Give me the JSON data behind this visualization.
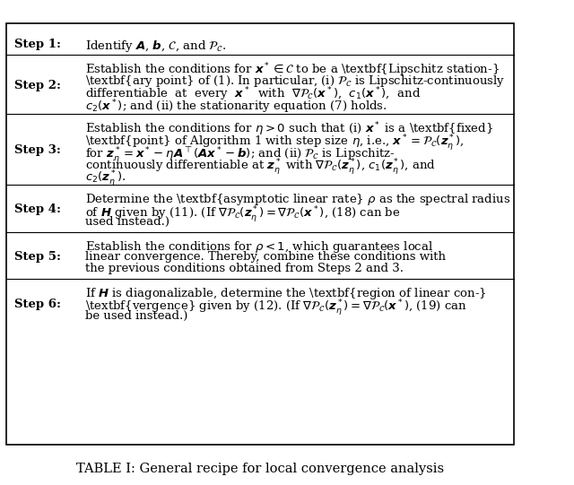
{
  "title": "TABLE I: General recipe for local convergence analysis",
  "background_color": "#ffffff",
  "border_color": "#000000",
  "text_color": "#000000",
  "steps": [
    {
      "label": "Step 1:",
      "content_lines": [
        "Identify $\\boldsymbol{A}$, $\\boldsymbol{b}$, $\\mathcal{C}$, and $\\mathcal{P}_{\\mathcal{C}}$."
      ]
    },
    {
      "label": "Step 2:",
      "content_lines": [
        "Establish the conditions for $\\boldsymbol{x}^* \\in \\mathcal{C}$ to be a \\textbf{Lipschitz station-}",
        "\\textbf{ary point} of (1). In particular, (i) $\\mathcal{P}_{\\mathcal{C}}$ is Lipschitz-continuously",
        "differentiable  at  every  $\\boldsymbol{x}^*$  with  $\\nabla\\mathcal{P}_{\\mathcal{C}}(\\boldsymbol{x}^*)$,  $c_1(\\boldsymbol{x}^*)$,  and",
        "$c_2(\\boldsymbol{x}^*)$; and (ii) the stationarity equation (7) holds."
      ]
    },
    {
      "label": "Step 3:",
      "content_lines": [
        "Establish the conditions for $\\eta > 0$ such that (i) $\\boldsymbol{x}^*$ is a \\textbf{fixed}",
        "\\textbf{point} of Algorithm 1 with step size $\\eta$, i.e., $\\boldsymbol{x}^* = \\mathcal{P}_{\\mathcal{C}}(\\boldsymbol{z}^*_\\eta)$,",
        "for $\\boldsymbol{z}^*_\\eta = \\boldsymbol{x}^* - \\eta\\boldsymbol{A}^\\top(\\boldsymbol{A}\\boldsymbol{x}^* - \\boldsymbol{b})$; and (ii) $\\mathcal{P}_{\\mathcal{C}}$ is Lipschitz-",
        "continuously differentiable at $\\boldsymbol{z}^*_\\eta$ with $\\nabla\\mathcal{P}_{\\mathcal{C}}(\\boldsymbol{z}^*_\\eta)$, $c_1(\\boldsymbol{z}^*_\\eta)$, and",
        "$c_2(\\boldsymbol{z}^*_\\eta)$."
      ]
    },
    {
      "label": "Step 4:",
      "content_lines": [
        "Determine the \\textbf{asymptotic linear rate} $\\rho$ as the spectral radius",
        "of $\\boldsymbol{H}$ given by (11). (If $\\nabla\\mathcal{P}_{\\mathcal{C}}(\\boldsymbol{z}^*_\\eta) = \\nabla\\mathcal{P}_{\\mathcal{C}}(\\boldsymbol{x}^*)$, (18) can be",
        "used instead.)"
      ]
    },
    {
      "label": "Step 5:",
      "content_lines": [
        "Establish the conditions for $\\rho < 1$, which guarantees local",
        "linear convergence. Thereby, combine these conditions with",
        "the previous conditions obtained from Steps 2 and 3."
      ]
    },
    {
      "label": "Step 6:",
      "content_lines": [
        "If $\\boldsymbol{H}$ is diagonalizable, determine the \\textbf{region of linear con-}",
        "\\textbf{vergence} given by (12). (If $\\nabla\\mathcal{P}_{\\mathcal{C}}(\\boldsymbol{z}^*_\\eta) = \\nabla\\mathcal{P}_{\\mathcal{C}}(\\boldsymbol{x}^*)$, (19) can",
        "be used instead.)"
      ]
    }
  ]
}
